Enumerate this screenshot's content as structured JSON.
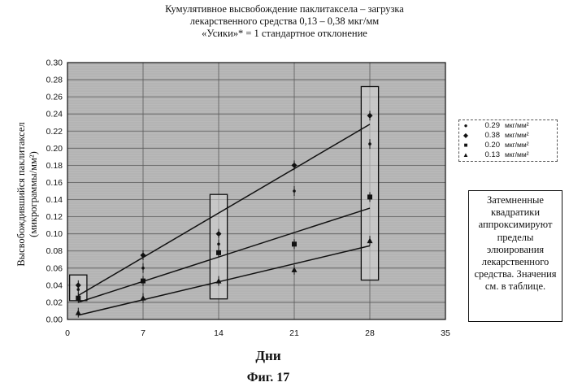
{
  "title_lines": [
    "Кумулятивное высвобождение паклитаксела – загрузка",
    "лекарственного средства 0,13 – 0,38 мкг/мм",
    "«Усики»* = 1 стандартное отклонение"
  ],
  "note_text": "Затемненные квадратики аппроксимируют пределы элюирования лекарственного средства. Значения см. в таблице.",
  "figure_caption": "Фиг. 17",
  "chart_data": {
    "type": "scatter",
    "title": "Кумулятивное высвобождение паклитаксела – загрузка лекарственного средства 0,13 – 0,38 мкг/мм «Усики»* = 1 стандартное отклонение",
    "xlabel": "Дни",
    "ylabel": "Высвобождившийся паклитаксел (микрограммы/мм²)",
    "xlim": [
      0,
      35
    ],
    "ylim": [
      0,
      0.3
    ],
    "x_ticks": [
      "0",
      "7",
      "14",
      "21",
      "28",
      "35"
    ],
    "y_ticks": [
      "0.00",
      "0.02",
      "0.04",
      "0.06",
      "0.08",
      "0.10",
      "0.12",
      "0.14",
      "0.16",
      "0.18",
      "0.20",
      "0.22",
      "0.24",
      "0.26",
      "0.28",
      "0.30"
    ],
    "grid": true,
    "legend_position": "right",
    "series": [
      {
        "name": "0.29",
        "unit": "мкг/мм²",
        "marker": "dot",
        "x": [
          1,
          7,
          14,
          21,
          28
        ],
        "y": [
          0.035,
          0.06,
          0.088,
          0.15,
          0.205
        ]
      },
      {
        "name": "0.38",
        "unit": "мкг/мм²",
        "marker": "diamond",
        "x": [
          1,
          7,
          14,
          21,
          28
        ],
        "y": [
          0.04,
          0.075,
          0.1,
          0.18,
          0.238
        ]
      },
      {
        "name": "0.20",
        "unit": "мкг/мм²",
        "marker": "square",
        "x": [
          1,
          7,
          14,
          21,
          28
        ],
        "y": [
          0.025,
          0.045,
          0.078,
          0.088,
          0.143
        ]
      },
      {
        "name": "0.13",
        "unit": "мкг/мм²",
        "marker": "triangle",
        "x": [
          1,
          7,
          14,
          21,
          28
        ],
        "y": [
          0.008,
          0.025,
          0.045,
          0.058,
          0.092
        ]
      }
    ],
    "trend_lines": [
      {
        "x": [
          1,
          28
        ],
        "y": [
          0.028,
          0.228
        ]
      },
      {
        "x": [
          1,
          28
        ],
        "y": [
          0.02,
          0.13
        ]
      },
      {
        "x": [
          1,
          28
        ],
        "y": [
          0.005,
          0.086
        ]
      }
    ],
    "elution_boxes": [
      {
        "x": [
          0.2,
          1.8
        ],
        "y": [
          0.022,
          0.052
        ]
      },
      {
        "x": [
          13.2,
          14.8
        ],
        "y": [
          0.024,
          0.146
        ]
      },
      {
        "x": [
          27.2,
          28.8
        ],
        "y": [
          0.046,
          0.272
        ]
      }
    ]
  }
}
